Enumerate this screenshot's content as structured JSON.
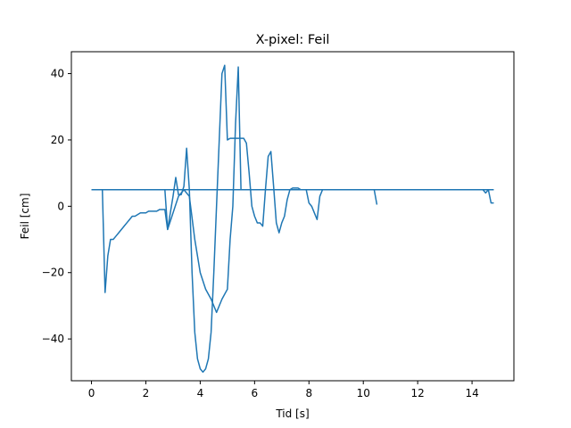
{
  "chart_data": {
    "type": "line",
    "title": "X-pixel: Feil",
    "xlabel": "Tid [s]",
    "ylabel": "Feil [cm]",
    "xlim": [
      -0.74,
      15.54
    ],
    "ylim": [
      -52.6,
      46.6
    ],
    "xticks": [
      0,
      2,
      4,
      6,
      8,
      10,
      12,
      14
    ],
    "yticks": [
      -40,
      -20,
      0,
      20,
      40
    ],
    "grid": false,
    "legend": false,
    "line_color": "#1f77b4",
    "series": [
      {
        "x": [
          0.0,
          0.1,
          0.2,
          0.3,
          0.4,
          0.5,
          0.6,
          0.7,
          0.8,
          0.9,
          1.0,
          1.1,
          1.2,
          1.3,
          1.4,
          1.5,
          1.6,
          1.7,
          1.8,
          1.9,
          2.0,
          2.1,
          2.2,
          2.3,
          2.4,
          2.5,
          2.6,
          2.7,
          2.8,
          2.9,
          3.0,
          3.1,
          3.2,
          3.3,
          3.4,
          3.5,
          3.6,
          3.7,
          3.8,
          3.9,
          4.0,
          4.1,
          4.2,
          4.3,
          4.4,
          4.5,
          4.6,
          4.7,
          4.8,
          4.9,
          5.0,
          5.1,
          5.2,
          5.3,
          5.4,
          5.5,
          5.6,
          5.7,
          5.8,
          5.9,
          6.0,
          6.1,
          6.2,
          6.3,
          6.4,
          6.5,
          6.6,
          6.7,
          6.8,
          6.9,
          7.0,
          7.1,
          7.2,
          7.3,
          7.4,
          7.5,
          7.6,
          7.7,
          7.8,
          7.9,
          8.0,
          8.1,
          8.2,
          8.3,
          8.4,
          8.5,
          8.6,
          8.7,
          8.8,
          8.9,
          9.0,
          9.1,
          9.2,
          9.3,
          9.4,
          9.5,
          9.6,
          9.7,
          9.8,
          9.9,
          10.0,
          10.1,
          10.2,
          10.3,
          10.4,
          10.5
        ],
        "y": [
          5,
          5,
          5,
          5,
          5,
          -26,
          -15,
          -10,
          -10,
          -9,
          -8,
          -7,
          -6,
          -5,
          -4,
          -3,
          -3,
          -2.5,
          -2,
          -2,
          -2,
          -1.5,
          -1.5,
          -1.5,
          -1.5,
          -1,
          -1,
          -1,
          -7,
          -2,
          3,
          8.7,
          3.5,
          3.5,
          6,
          17.5,
          5,
          -20,
          -38,
          -46,
          -49,
          -50,
          -49,
          -46,
          -38,
          -20,
          0,
          20,
          40,
          42.5,
          20,
          20.5,
          20.5,
          20.5,
          20.5,
          20.5,
          20.5,
          19,
          10,
          0,
          -3,
          -5,
          -5,
          -6,
          5,
          15,
          16.5,
          6,
          -5,
          -8,
          -5,
          -3,
          2,
          5,
          5.5,
          5.5,
          5.5,
          5,
          5,
          5,
          1,
          0,
          -2,
          -4,
          3,
          5,
          5,
          5,
          5,
          5,
          5,
          5,
          5,
          5,
          5,
          5,
          5,
          5,
          5,
          5,
          5,
          5,
          5,
          5,
          5,
          0.5
        ]
      },
      {
        "x": [
          0.4,
          0.6,
          0.8,
          1.2,
          2.6,
          2.7,
          2.8,
          3.0,
          3.2,
          3.4,
          3.6,
          3.8,
          4.0,
          4.2,
          4.4,
          4.6,
          4.8,
          5.0,
          5.1,
          5.2,
          5.3,
          5.4,
          5.5,
          6.0,
          14.2,
          14.3,
          14.4,
          14.5,
          14.6,
          14.7,
          14.8
        ],
        "y": [
          5,
          5,
          5,
          5,
          5,
          5,
          -7,
          -2,
          3,
          5,
          3,
          -10,
          -20,
          -25,
          -28,
          -32,
          -28,
          -25,
          -10,
          0,
          25,
          42,
          5,
          5,
          5,
          5,
          5,
          4,
          5,
          1,
          1
        ]
      },
      {
        "x": [
          0.0,
          14.8
        ],
        "y": [
          5,
          5
        ]
      }
    ]
  }
}
